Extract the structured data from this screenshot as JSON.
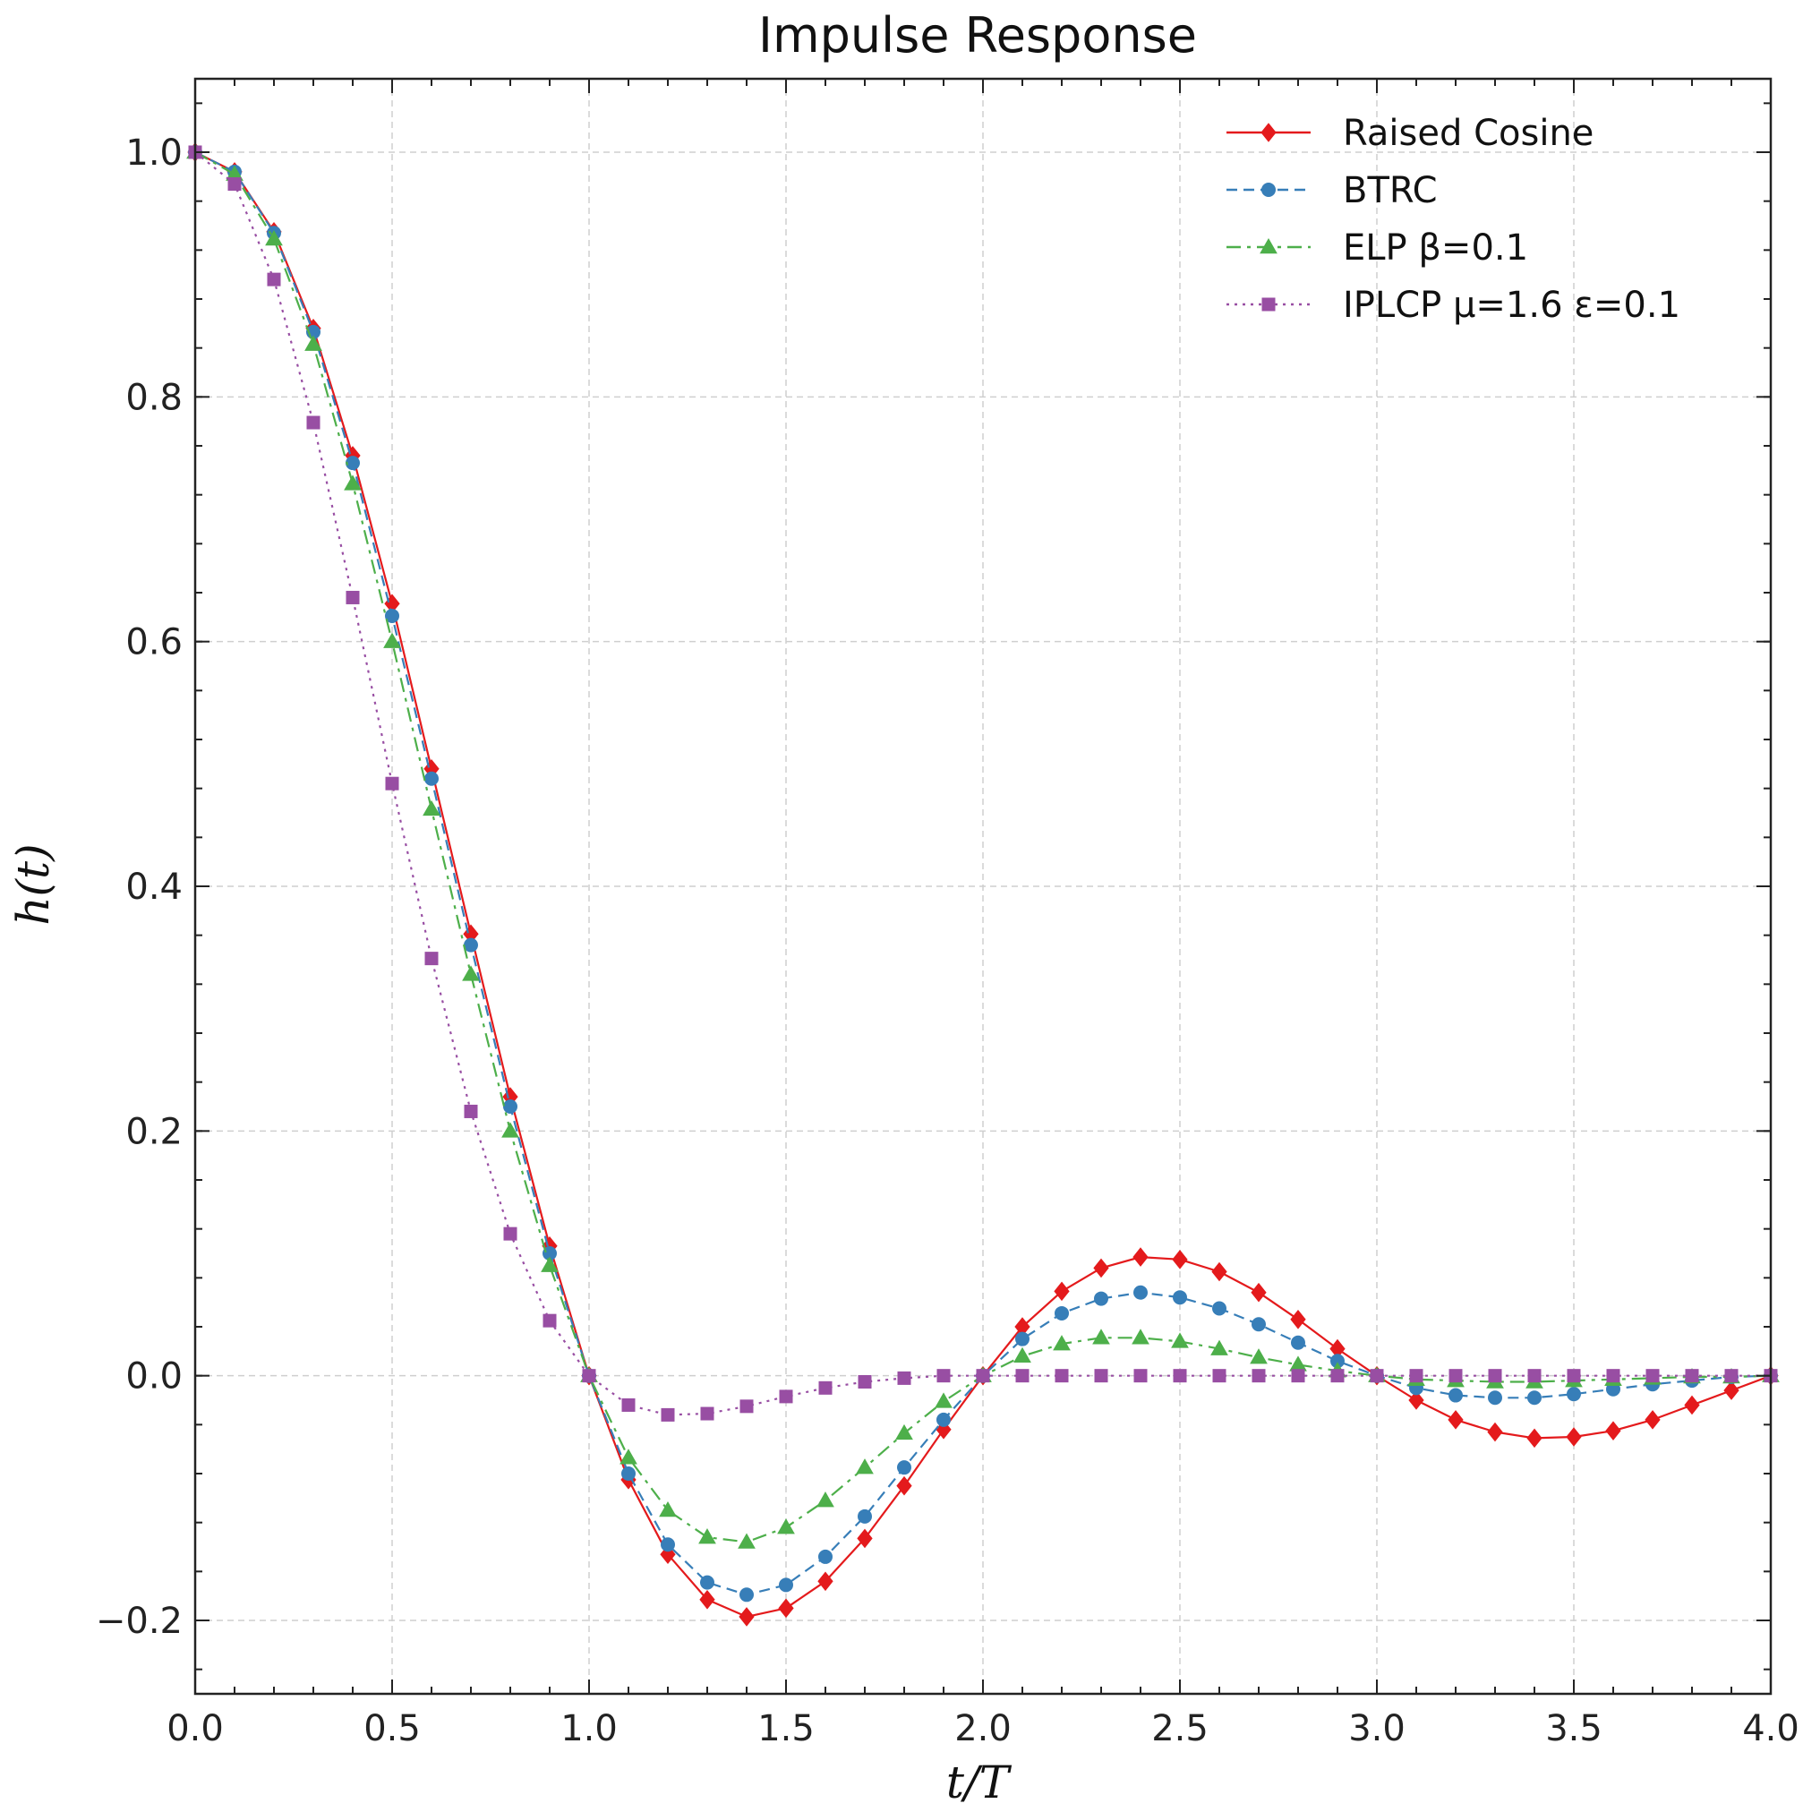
{
  "chart_data": {
    "type": "line",
    "title": "Impulse Response",
    "xlabel": "t/T",
    "ylabel": "h(t)",
    "xlim": [
      0,
      4
    ],
    "ylim": [
      -0.26,
      1.06
    ],
    "x_ticks": [
      0.0,
      0.5,
      1.0,
      1.5,
      2.0,
      2.5,
      3.0,
      3.5,
      4.0
    ],
    "x_tick_labels": [
      "0.0",
      "0.5",
      "1.0",
      "1.5",
      "2.0",
      "2.5",
      "3.0",
      "3.5",
      "4.0"
    ],
    "y_ticks": [
      -0.2,
      0.0,
      0.2,
      0.4,
      0.6,
      0.8,
      1.0
    ],
    "y_tick_labels": [
      "−0.2",
      "0.0",
      "0.2",
      "0.4",
      "0.6",
      "0.8",
      "1.0"
    ],
    "grid": true,
    "legend_position": "top-right",
    "x": [
      0.0,
      0.1,
      0.2,
      0.3,
      0.4,
      0.5,
      0.6,
      0.7,
      0.8,
      0.9,
      1.0,
      1.1,
      1.2,
      1.3,
      1.4,
      1.5,
      1.6,
      1.7,
      1.8,
      1.9,
      2.0,
      2.1,
      2.2,
      2.3,
      2.4,
      2.5,
      2.6,
      2.7,
      2.8,
      2.9,
      3.0,
      3.1,
      3.2,
      3.3,
      3.4,
      3.5,
      3.6,
      3.7,
      3.8,
      3.9,
      4.0
    ],
    "series": [
      {
        "name": "Raised Cosine",
        "color": "#e41a1c",
        "line_style": "solid",
        "marker": "diamond",
        "values": [
          1.0,
          0.984,
          0.935,
          0.856,
          0.752,
          0.631,
          0.496,
          0.361,
          0.228,
          0.106,
          0.0,
          -0.085,
          -0.146,
          -0.183,
          -0.197,
          -0.19,
          -0.168,
          -0.133,
          -0.09,
          -0.044,
          0.0,
          0.04,
          0.069,
          0.088,
          0.097,
          0.095,
          0.085,
          0.068,
          0.046,
          0.022,
          0.0,
          -0.02,
          -0.036,
          -0.046,
          -0.051,
          -0.05,
          -0.045,
          -0.036,
          -0.024,
          -0.012,
          0.0
        ]
      },
      {
        "name": "BTRC",
        "color": "#377eb8",
        "line_style": "dashed",
        "marker": "circle",
        "values": [
          1.0,
          0.984,
          0.934,
          0.853,
          0.746,
          0.621,
          0.488,
          0.352,
          0.22,
          0.1,
          0.0,
          -0.08,
          -0.138,
          -0.169,
          -0.179,
          -0.171,
          -0.148,
          -0.115,
          -0.075,
          -0.036,
          0.0,
          0.03,
          0.051,
          0.063,
          0.068,
          0.064,
          0.055,
          0.042,
          0.027,
          0.012,
          0.0,
          -0.01,
          -0.016,
          -0.018,
          -0.018,
          -0.015,
          -0.011,
          -0.007,
          -0.004,
          -0.001,
          0.0
        ]
      },
      {
        "name": "ELP β=0.1",
        "color": "#4daf4a",
        "line_style": "dashdot",
        "marker": "triangle",
        "values": [
          1.0,
          0.982,
          0.929,
          0.843,
          0.729,
          0.6,
          0.463,
          0.328,
          0.2,
          0.09,
          0.0,
          -0.067,
          -0.11,
          -0.132,
          -0.136,
          -0.124,
          -0.102,
          -0.075,
          -0.047,
          -0.021,
          0.0,
          0.016,
          0.026,
          0.031,
          0.031,
          0.028,
          0.022,
          0.015,
          0.009,
          0.004,
          0.0,
          -0.003,
          -0.004,
          -0.005,
          -0.005,
          -0.004,
          -0.003,
          -0.002,
          -0.001,
          -0.001,
          0.0
        ]
      },
      {
        "name": "IPLCP μ=1.6 ε=0.1",
        "color": "#984ea3",
        "line_style": "dotted",
        "marker": "square",
        "values": [
          1.0,
          0.974,
          0.896,
          0.779,
          0.636,
          0.484,
          0.341,
          0.216,
          0.116,
          0.045,
          0.0,
          -0.024,
          -0.032,
          -0.031,
          -0.025,
          -0.017,
          -0.01,
          -0.005,
          -0.002,
          -0.0,
          0.0,
          0.0,
          0.0,
          0.0,
          0.0,
          0.0,
          0.0,
          0.0,
          0.0,
          0.0,
          0.0,
          0.0,
          0.0,
          0.0,
          0.0,
          0.0,
          0.0,
          0.0,
          0.0,
          0.0,
          0.0
        ]
      }
    ]
  }
}
